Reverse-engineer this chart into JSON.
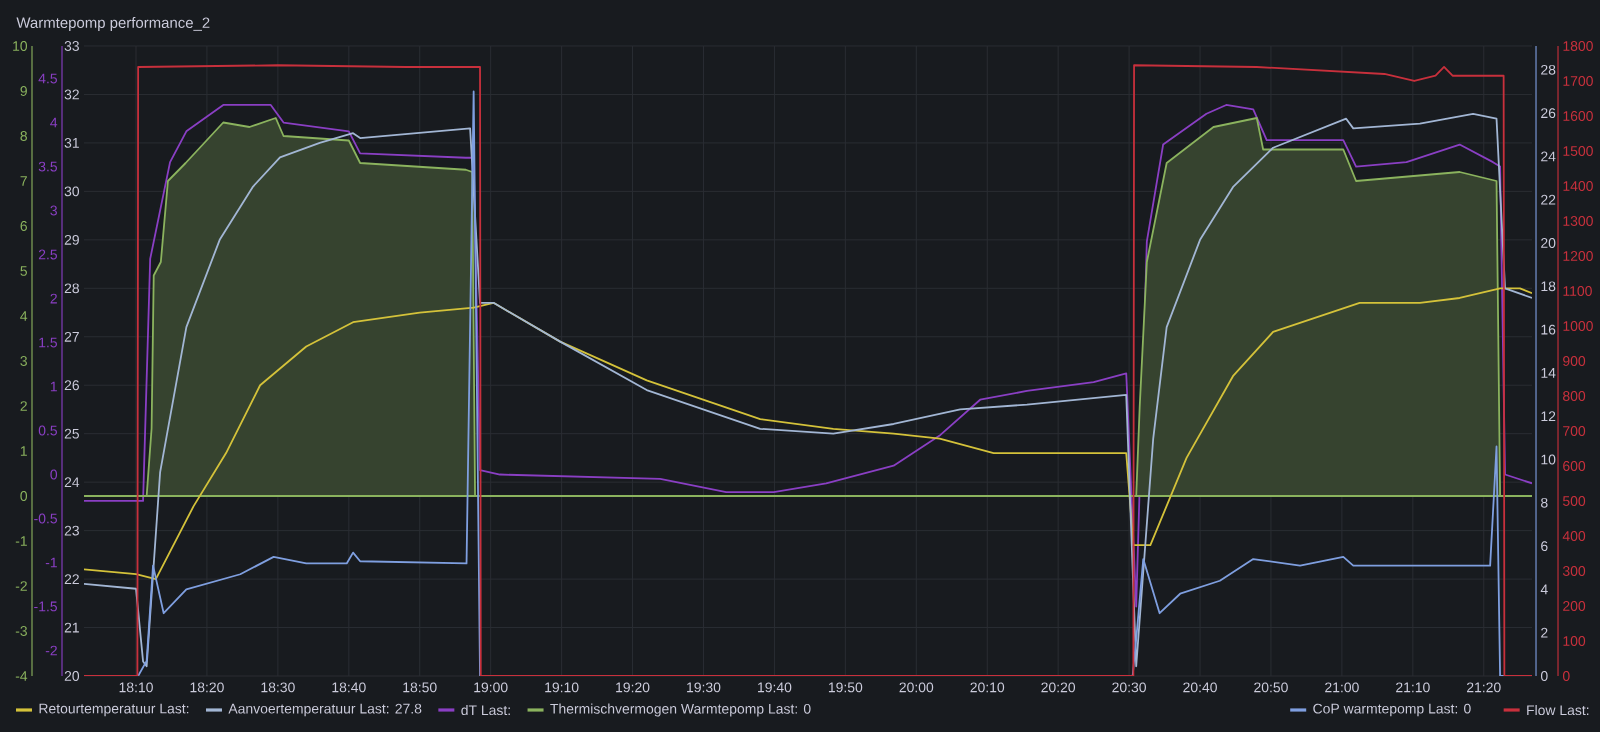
{
  "chart_data": [
    {
      "type": "line",
      "title": "Warmtepomp performance_2",
      "xlim": [
        18.0445,
        21.4467
      ],
      "xticks": [
        {
          "value": 18.1667,
          "label": "18:10"
        },
        {
          "value": 18.3333,
          "label": "18:20"
        },
        {
          "value": 18.5,
          "label": "18:30"
        },
        {
          "value": 18.6667,
          "label": "18:40"
        },
        {
          "value": 18.8333,
          "label": "18:50"
        },
        {
          "value": 19,
          "label": "19:00"
        },
        {
          "value": 19.1667,
          "label": "19:10"
        },
        {
          "value": 19.3333,
          "label": "19:20"
        },
        {
          "value": 19.5,
          "label": "19:30"
        },
        {
          "value": 19.6667,
          "label": "19:40"
        },
        {
          "value": 19.8333,
          "label": "19:50"
        },
        {
          "value": 20,
          "label": "20:00"
        },
        {
          "value": 20.1667,
          "label": "20:10"
        },
        {
          "value": 20.3333,
          "label": "20:20"
        },
        {
          "value": 20.5,
          "label": "20:30"
        },
        {
          "value": 20.6667,
          "label": "20:40"
        },
        {
          "value": 20.8333,
          "label": "20:50"
        },
        {
          "value": 21,
          "label": "21:00"
        },
        {
          "value": 21.1667,
          "label": "21:10"
        },
        {
          "value": 21.3333,
          "label": "21:20"
        }
      ],
      "ylim": [
        20,
        33
      ],
      "yticks": [
        20,
        21,
        22,
        23,
        24,
        25,
        26,
        27,
        28,
        29,
        30,
        31,
        32,
        33
      ],
      "y2lim": [
        0,
        29.1
      ],
      "y2ticks": [
        0,
        2,
        4,
        6,
        8,
        10,
        12,
        14,
        16,
        18,
        20,
        22,
        24,
        26,
        28
      ],
      "y3lim": [
        0,
        1800
      ],
      "y3ticks": [
        0,
        100,
        200,
        300,
        400,
        500,
        600,
        700,
        800,
        900,
        1000,
        1100,
        1200,
        1300,
        1400,
        1500,
        1600,
        1700,
        1800
      ],
      "grid": true,
      "legend": "bottom",
      "series": [
        {
          "name": "Retourtemperatuur Last:",
          "color": "#d4c23a",
          "x": [
            18.0445,
            18.1667,
            18.2133,
            18.3017,
            18.3783,
            18.4583,
            18.5667,
            18.6767,
            18.8333,
            18.96,
            19.0067,
            19.1633,
            19.3667,
            19.6333,
            19.805,
            19.9467,
            20.055,
            20.1817,
            20.4167,
            20.4933,
            20.51,
            20.55,
            20.635,
            20.745,
            20.8383,
            21.0417,
            21.1833,
            21.2767,
            21.3717,
            21.4183,
            21.4467
          ],
          "values": [
            22.2,
            22.1,
            22.0,
            23.5,
            24.6,
            26.0,
            26.8,
            27.3,
            27.5,
            27.6,
            27.7,
            26.9,
            26.1,
            25.3,
            25.1,
            25.0,
            24.9,
            24.6,
            24.6,
            24.6,
            22.7,
            22.7,
            24.5,
            26.2,
            27.1,
            27.7,
            27.7,
            27.8,
            28.0,
            28.0,
            27.9
          ]
        },
        {
          "name": "Aanvoertemperatuur Last: 27.8",
          "color": "#a2b6d4",
          "x": [
            18.0445,
            18.1667,
            18.1833,
            18.1917,
            18.2233,
            18.285,
            18.3633,
            18.4417,
            18.505,
            18.5983,
            18.6767,
            18.6933,
            18.9517,
            18.975,
            19.0067,
            19.1633,
            19.3667,
            19.6333,
            19.805,
            19.9467,
            20.1033,
            20.26,
            20.4933,
            20.5167,
            20.5567,
            20.5883,
            20.6667,
            20.745,
            20.8383,
            21.01,
            21.0267,
            21.1833,
            21.3083,
            21.3633,
            21.3833,
            21.4467
          ],
          "values": [
            21.9,
            21.8,
            20.3,
            20.2,
            24.2,
            27.2,
            29.0,
            30.1,
            30.7,
            31.0,
            31.2,
            31.1,
            31.3,
            27.7,
            27.7,
            26.9,
            25.9,
            25.1,
            25.0,
            25.2,
            25.5,
            25.6,
            25.8,
            20.2,
            24.9,
            27.2,
            29.0,
            30.1,
            30.9,
            31.5,
            31.3,
            31.4,
            31.6,
            31.5,
            28.0,
            27.8
          ]
        },
        {
          "name": "CoP warmtepomp Last: 0",
          "color": "#7f9fe0",
          "axis": "y2",
          "x": [
            18.0445,
            18.1717,
            18.1917,
            18.2067,
            18.2317,
            18.285,
            18.4117,
            18.49,
            18.5667,
            18.6617,
            18.6767,
            18.6933,
            18.9433,
            18.96,
            18.975,
            20.5083,
            20.5167,
            20.5333,
            20.5717,
            20.62,
            20.7133,
            20.7917,
            20.9017,
            21.0033,
            21.0267,
            21.215,
            21.3483,
            21.3633,
            21.3717,
            21.4467
          ],
          "values": [
            0,
            0,
            0.7,
            5.1,
            2.9,
            4.0,
            4.7,
            5.5,
            5.2,
            5.2,
            5.7,
            5.3,
            5.2,
            27,
            0,
            0,
            1.7,
            5.4,
            2.9,
            3.8,
            4.4,
            5.4,
            5.1,
            5.5,
            5.1,
            5.1,
            5.1,
            10.6,
            0,
            0
          ]
        },
        {
          "name": "Flow Last:",
          "color": "#c8303c",
          "axis": "y3",
          "x": [
            18.0445,
            18.17,
            18.1717,
            18.5,
            18.8,
            18.975,
            18.9767,
            20.51,
            20.5117,
            20.8,
            21.1,
            21.17,
            21.22,
            21.24,
            21.26,
            21.38,
            21.3817,
            21.4467
          ],
          "values": [
            0,
            0,
            1740,
            1745,
            1740,
            1740,
            0,
            0,
            1745,
            1740,
            1720,
            1700,
            1715,
            1740,
            1715,
            1715,
            0,
            0
          ]
        }
      ]
    },
    {
      "type": "line",
      "tick_labels": "y",
      "xlim": [
        18.0445,
        21.4467
      ],
      "ylim": [
        -2.29,
        4.87
      ],
      "yticks": [
        -2,
        -1.5,
        -1,
        -0.5,
        0,
        0.5,
        1,
        1.5,
        2,
        2.5,
        3,
        3.5,
        4,
        4.5
      ],
      "y2lim": [
        -4,
        10
      ],
      "y2ticks": [
        -4,
        -3,
        -2,
        -1,
        0,
        1,
        2,
        3,
        4,
        5,
        6,
        7,
        8,
        9,
        10
      ],
      "legend": "bottom",
      "series": [
        {
          "name": "dT Last:",
          "color": "#8a3fc4",
          "x": [
            18.0445,
            18.1667,
            18.1833,
            18.2,
            18.2467,
            18.285,
            18.3717,
            18.4833,
            18.5133,
            18.6667,
            18.6933,
            18.9417,
            18.96,
            18.975,
            19.0217,
            19.3983,
            19.5533,
            19.665,
            19.7883,
            19.9467,
            20.0567,
            20.15,
            20.26,
            20.4167,
            20.4933,
            20.5167,
            20.5417,
            20.58,
            20.6817,
            20.7283,
            20.7917,
            20.8233,
            21.0033,
            21.0333,
            21.1517,
            21.2767,
            21.355,
            21.3717,
            21.3833,
            21.4467
          ],
          "values": [
            -0.3,
            -0.3,
            -0.3,
            2.45,
            3.55,
            3.9,
            4.2,
            4.2,
            4.0,
            3.9,
            3.65,
            3.6,
            3.6,
            0.05,
            0.0,
            -0.05,
            -0.2,
            -0.2,
            -0.1,
            0.1,
            0.45,
            0.85,
            0.95,
            1.05,
            1.15,
            -1.5,
            2.65,
            3.75,
            4.1,
            4.2,
            4.15,
            3.8,
            3.8,
            3.5,
            3.55,
            3.75,
            3.55,
            3.5,
            0.0,
            -0.1
          ]
        },
        {
          "name": "Thermischvermogen Warmtepomp Last: 0",
          "color": "#8bb35e",
          "axis": "y2",
          "type": "area",
          "x": [
            18.0445,
            18.1917,
            18.2033,
            18.2083,
            18.225,
            18.2417,
            18.2833,
            18.3717,
            18.4333,
            18.495,
            18.5133,
            18.6667,
            18.6933,
            18.9417,
            18.9567,
            18.9633,
            20.5167,
            20.525,
            20.5417,
            20.5883,
            20.6983,
            20.8,
            20.815,
            21.0033,
            21.0333,
            21.2767,
            21.3633,
            21.3717,
            21.4467
          ],
          "values": [
            0,
            0,
            1.5,
            4.9,
            5.2,
            7.0,
            7.4,
            8.3,
            8.2,
            8.4,
            8.0,
            7.9,
            7.4,
            7.25,
            7.2,
            0,
            0,
            2.0,
            5.2,
            7.4,
            8.2,
            8.4,
            7.7,
            7.7,
            7.0,
            7.2,
            7.0,
            0,
            0
          ]
        }
      ]
    }
  ]
}
